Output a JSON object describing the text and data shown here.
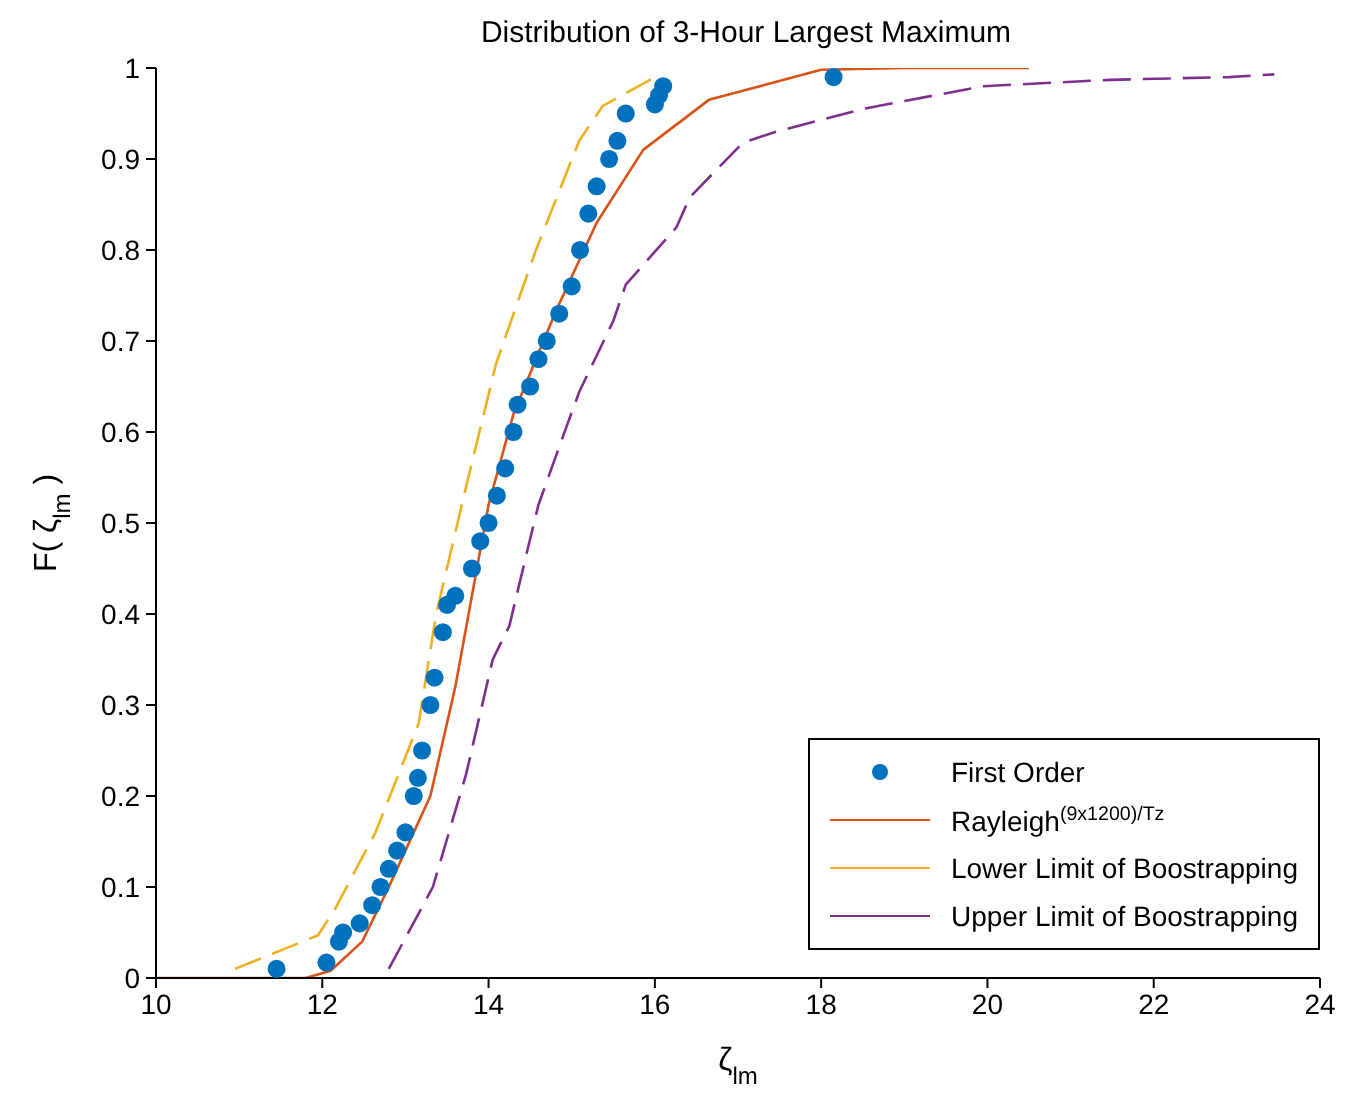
{
  "chart_data": {
    "type": "line",
    "title": "Distribution of 3-Hour Largest Maximum",
    "xlabel": "ζ$_{lm}$",
    "ylabel": "F( ζ$_{lm}$ )",
    "xlim": [
      10,
      24
    ],
    "xticks": [
      10,
      12,
      14,
      16,
      18,
      20,
      22,
      24
    ],
    "ylim": [
      0,
      1
    ],
    "yticks": [
      0,
      0.1,
      0.2,
      0.3,
      0.4,
      0.5,
      0.6,
      0.7,
      0.8,
      0.9,
      1
    ],
    "grid": false,
    "legend": "bottom right",
    "series": [
      {
        "name": "First Order",
        "type": "scatter",
        "marker": "circle",
        "color": "#0072bd",
        "x": [
          11.45,
          12.05,
          12.2,
          12.25,
          12.45,
          12.6,
          12.7,
          12.8,
          12.9,
          13.0,
          13.1,
          13.15,
          13.2,
          13.3,
          13.35,
          13.45,
          13.5,
          13.6,
          13.8,
          13.9,
          14.0,
          14.1,
          14.2,
          14.3,
          14.35,
          14.5,
          14.6,
          14.7,
          14.85,
          15.0,
          15.1,
          15.2,
          15.3,
          15.45,
          15.55,
          15.65,
          16.0,
          16.05,
          16.1,
          18.15
        ],
        "values": [
          0.01,
          0.017,
          0.04,
          0.05,
          0.06,
          0.08,
          0.1,
          0.12,
          0.14,
          0.16,
          0.2,
          0.22,
          0.25,
          0.3,
          0.33,
          0.38,
          0.41,
          0.42,
          0.45,
          0.48,
          0.5,
          0.53,
          0.56,
          0.6,
          0.63,
          0.65,
          0.68,
          0.7,
          0.73,
          0.76,
          0.8,
          0.84,
          0.87,
          0.9,
          0.92,
          0.95,
          0.96,
          0.97,
          0.98,
          0.99
        ]
      },
      {
        "name": "Rayleigh$^{(9x1200)/Tz}$",
        "line_style": "solid",
        "color": "#d95319",
        "x": [
          10,
          11.8,
          12.1,
          12.48,
          12.8,
          13.0,
          13.3,
          13.6,
          13.8,
          14.0,
          14.3,
          14.81,
          15.3,
          15.86,
          16.65,
          18.0,
          19.0,
          20.5
        ],
        "values": [
          0,
          0,
          0.008,
          0.04,
          0.1,
          0.14,
          0.2,
          0.32,
          0.42,
          0.52,
          0.62,
          0.733,
          0.83,
          0.91,
          0.965,
          0.998,
          1,
          1
        ]
      },
      {
        "name": "Lower Limit of Boostrapping",
        "line_style": "dashed",
        "color": "#edb120",
        "x": [
          10.95,
          11.95,
          12.16,
          12.64,
          13.16,
          13.37,
          13.73,
          14.09,
          14.57,
          15.09,
          15.37,
          16.0
        ],
        "values": [
          0.01,
          0.047,
          0.077,
          0.16,
          0.28,
          0.4,
          0.54,
          0.675,
          0.8,
          0.92,
          0.958,
          0.99
        ]
      },
      {
        "name": "Upper Limit of Boostrapping",
        "line_style": "dashed",
        "color": "#7e2f8e",
        "x": [
          12.8,
          13.33,
          13.73,
          14.05,
          14.25,
          14.48,
          14.6,
          14.93,
          15.09,
          15.5,
          15.65,
          16.26,
          16.42,
          17.06,
          17.46,
          18.5,
          19.95,
          21.47,
          22.9,
          23.45
        ],
        "values": [
          0.01,
          0.1,
          0.224,
          0.35,
          0.387,
          0.475,
          0.52,
          0.604,
          0.644,
          0.722,
          0.762,
          0.825,
          0.858,
          0.918,
          0.93,
          0.955,
          0.98,
          0.987,
          0.99,
          0.993
        ]
      }
    ]
  }
}
